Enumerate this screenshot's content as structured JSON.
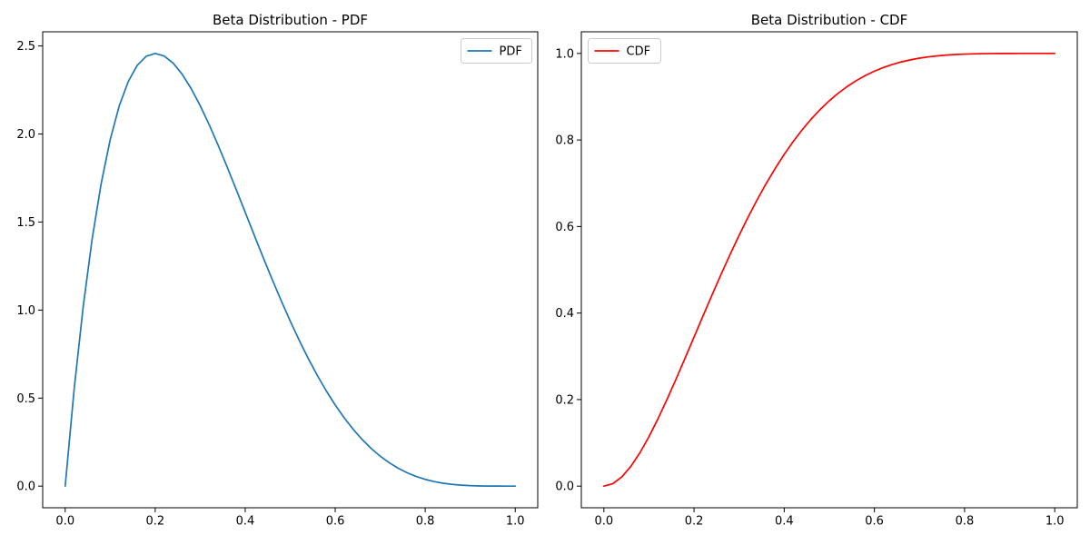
{
  "figure": {
    "background": "#ffffff",
    "spine_color": "#000000",
    "text_color": "#000000"
  },
  "chart_data": [
    {
      "type": "line",
      "title": "Beta Distribution - PDF",
      "xlabel": "",
      "ylabel": "",
      "grid": false,
      "xlim": [
        -0.05,
        1.05
      ],
      "ylim": [
        -0.1229,
        2.5805
      ],
      "xticks": {
        "values": [
          0,
          0.2,
          0.4,
          0.6,
          0.8,
          1.0
        ],
        "labels": [
          "0.0",
          "0.2",
          "0.4",
          "0.6",
          "0.8",
          "1.0"
        ]
      },
      "yticks": {
        "values": [
          0,
          0.5,
          1.0,
          1.5,
          2.0,
          2.5
        ],
        "labels": [
          "0.0",
          "0.5",
          "1.0",
          "1.5",
          "2.0",
          "2.5"
        ]
      },
      "legend": {
        "loc": "upper right",
        "entries": [
          "PDF"
        ]
      },
      "series": [
        {
          "name": "PDF",
          "color": "#1f77b4",
          "x": [
            0,
            0.02,
            0.04,
            0.06,
            0.08,
            0.1,
            0.12,
            0.14,
            0.16,
            0.18,
            0.2,
            0.22,
            0.24,
            0.26,
            0.28,
            0.3,
            0.32,
            0.34,
            0.36,
            0.38,
            0.4,
            0.42,
            0.44,
            0.46,
            0.48,
            0.5,
            0.52,
            0.54,
            0.56,
            0.58,
            0.6,
            0.62,
            0.64,
            0.66,
            0.68,
            0.7,
            0.72,
            0.74,
            0.76,
            0.78,
            0.8,
            0.82,
            0.84,
            0.86,
            0.88,
            0.9,
            0.92,
            0.94,
            0.96,
            0.98,
            1
          ],
          "y": [
            0,
            0.5534,
            1.0192,
            1.4054,
            1.7193,
            1.9683,
            2.1589,
            2.2974,
            2.3898,
            2.4415,
            2.4576,
            2.443,
            2.4021,
            2.3389,
            2.2574,
            2.1609,
            2.0526,
            1.9354,
            1.8119,
            1.6845,
            1.5552,
            1.4259,
            1.2982,
            1.1734,
            1.0529,
            0.9375,
            0.8281,
            0.7254,
            0.6297,
            0.5414,
            0.4608,
            0.3878,
            0.3225,
            0.2646,
            0.2139,
            0.1701,
            0.1328,
            0.1015,
            0.0757,
            0.0548,
            0.0384,
            0.0258,
            0.0165,
            0.0099,
            0.0055,
            0.0027,
            0.0011,
            0.0004,
            0.0001,
            0,
            0
          ]
        }
      ]
    },
    {
      "type": "line",
      "title": "Beta Distribution - CDF",
      "xlabel": "",
      "ylabel": "",
      "grid": false,
      "xlim": [
        -0.05,
        1.05
      ],
      "ylim": [
        -0.05,
        1.05
      ],
      "xticks": {
        "values": [
          0,
          0.2,
          0.4,
          0.6,
          0.8,
          1.0
        ],
        "labels": [
          "0.0",
          "0.2",
          "0.4",
          "0.6",
          "0.8",
          "1.0"
        ]
      },
      "yticks": {
        "values": [
          0,
          0.2,
          0.4,
          0.6,
          0.8,
          1.0
        ],
        "labels": [
          "0.0",
          "0.2",
          "0.4",
          "0.6",
          "0.8",
          "1.0"
        ]
      },
      "legend": {
        "loc": "upper left",
        "entries": [
          "CDF"
        ]
      },
      "series": [
        {
          "name": "CDF",
          "color": "#ff0000",
          "x": [
            0,
            0.02,
            0.04,
            0.06,
            0.08,
            0.1,
            0.12,
            0.14,
            0.16,
            0.18,
            0.2,
            0.22,
            0.24,
            0.26,
            0.28,
            0.3,
            0.32,
            0.34,
            0.36,
            0.38,
            0.4,
            0.42,
            0.44,
            0.46,
            0.48,
            0.5,
            0.52,
            0.54,
            0.56,
            0.58,
            0.6,
            0.62,
            0.64,
            0.66,
            0.68,
            0.7,
            0.72,
            0.74,
            0.76,
            0.78,
            0.8,
            0.82,
            0.84,
            0.86,
            0.88,
            0.9,
            0.92,
            0.94,
            0.96,
            0.98,
            1
          ],
          "y": [
            0,
            0.0057,
            0.0216,
            0.0459,
            0.0773,
            0.1143,
            0.1556,
            0.2003,
            0.2472,
            0.2956,
            0.3446,
            0.3937,
            0.4422,
            0.4896,
            0.5356,
            0.5798,
            0.622,
            0.6619,
            0.6994,
            0.7343,
            0.7667,
            0.7965,
            0.8238,
            0.8485,
            0.8707,
            0.8906,
            0.9083,
            0.9238,
            0.9373,
            0.949,
            0.959,
            0.9675,
            0.9746,
            0.9805,
            0.9852,
            0.9891,
            0.9921,
            0.9944,
            0.9962,
            0.9975,
            0.9984,
            0.999,
            0.9995,
            0.9997,
            0.9999,
            0.9999,
            1,
            1,
            1,
            1,
            1
          ]
        }
      ]
    }
  ]
}
